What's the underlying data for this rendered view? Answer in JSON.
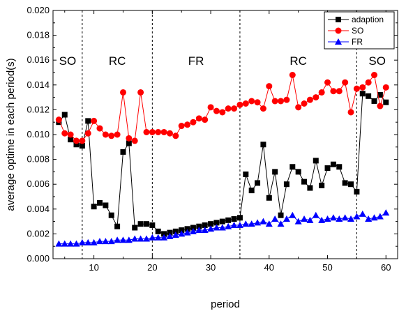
{
  "chart_data": {
    "type": "line",
    "xlabel": "period",
    "ylabel": "average optime in each period(s)",
    "xlim": [
      3,
      62
    ],
    "ylim": [
      0,
      0.02
    ],
    "xticks": [
      10,
      20,
      30,
      40,
      50,
      60
    ],
    "yticks": [
      "0.000",
      "0.002",
      "0.004",
      "0.006",
      "0.008",
      "0.010",
      "0.012",
      "0.014",
      "0.016",
      "0.018",
      "0.020"
    ],
    "grid": false,
    "legend_position": "top-right",
    "regions": [
      {
        "label": "SO",
        "x_from": 3,
        "x_to": 8
      },
      {
        "label": "RC",
        "x_from": 8,
        "x_to": 20
      },
      {
        "label": "FR",
        "x_from": 20,
        "x_to": 35
      },
      {
        "label": "RC",
        "x_from": 35,
        "x_to": 55
      },
      {
        "label": "SO",
        "x_from": 55,
        "x_to": 62
      }
    ],
    "region_dividers": [
      8,
      20,
      35,
      55
    ],
    "x": [
      4,
      5,
      6,
      7,
      8,
      9,
      10,
      11,
      12,
      13,
      14,
      15,
      16,
      17,
      18,
      19,
      20,
      21,
      22,
      23,
      24,
      25,
      26,
      27,
      28,
      29,
      30,
      31,
      32,
      33,
      34,
      35,
      36,
      37,
      38,
      39,
      40,
      41,
      42,
      43,
      44,
      45,
      46,
      47,
      48,
      49,
      50,
      51,
      52,
      53,
      54,
      55,
      56,
      57,
      58,
      59,
      60
    ],
    "series": [
      {
        "name": "adaption",
        "color": "#000000",
        "marker": "square",
        "values": [
          0.011,
          0.0116,
          0.0096,
          0.0092,
          0.0091,
          0.0111,
          0.0042,
          0.0045,
          0.0043,
          0.0035,
          0.0026,
          0.0086,
          0.0093,
          0.0025,
          0.0028,
          0.0028,
          0.0027,
          0.0022,
          0.002,
          0.0021,
          0.0022,
          0.0023,
          0.0024,
          0.0025,
          0.0026,
          0.0027,
          0.0028,
          0.0029,
          0.003,
          0.0031,
          0.0032,
          0.0033,
          0.0068,
          0.0055,
          0.0061,
          0.0092,
          0.0049,
          0.007,
          0.0035,
          0.006,
          0.0074,
          0.007,
          0.0062,
          0.0057,
          0.0079,
          0.0059,
          0.0073,
          0.0076,
          0.0074,
          0.0061,
          0.006,
          0.0054,
          0.0133,
          0.0131,
          0.0127,
          0.0132,
          0.0126
        ]
      },
      {
        "name": "SO",
        "color": "#ff0000",
        "marker": "circle",
        "values": [
          0.0112,
          0.0101,
          0.01,
          0.0095,
          0.0095,
          0.0101,
          0.0111,
          0.0105,
          0.01,
          0.0099,
          0.01,
          0.0134,
          0.0097,
          0.0095,
          0.0134,
          0.0102,
          0.0102,
          0.0102,
          0.0102,
          0.0101,
          0.0099,
          0.0107,
          0.0108,
          0.011,
          0.0113,
          0.0112,
          0.0122,
          0.0119,
          0.0118,
          0.0121,
          0.0121,
          0.0124,
          0.0125,
          0.0127,
          0.0126,
          0.0121,
          0.0139,
          0.0127,
          0.0127,
          0.0128,
          0.0148,
          0.0122,
          0.0125,
          0.0128,
          0.013,
          0.0134,
          0.0142,
          0.0135,
          0.0135,
          0.0142,
          0.0118,
          0.0137,
          0.0138,
          0.0142,
          0.0148,
          0.0123,
          0.0138
        ]
      },
      {
        "name": "FR",
        "color": "#0000ff",
        "marker": "triangle",
        "values": [
          0.0012,
          0.0012,
          0.0012,
          0.0012,
          0.0013,
          0.0013,
          0.0013,
          0.0014,
          0.0014,
          0.0014,
          0.0015,
          0.0015,
          0.0015,
          0.0016,
          0.0016,
          0.0016,
          0.0017,
          0.0017,
          0.0017,
          0.0018,
          0.0019,
          0.002,
          0.0021,
          0.0022,
          0.0023,
          0.0023,
          0.0024,
          0.0025,
          0.0025,
          0.0026,
          0.0027,
          0.0027,
          0.0028,
          0.0028,
          0.0029,
          0.003,
          0.0028,
          0.0032,
          0.0028,
          0.0032,
          0.0035,
          0.003,
          0.0032,
          0.0031,
          0.0035,
          0.0031,
          0.0032,
          0.0033,
          0.0032,
          0.0033,
          0.0032,
          0.0034,
          0.0036,
          0.0032,
          0.0033,
          0.0034,
          0.0037
        ]
      }
    ]
  }
}
